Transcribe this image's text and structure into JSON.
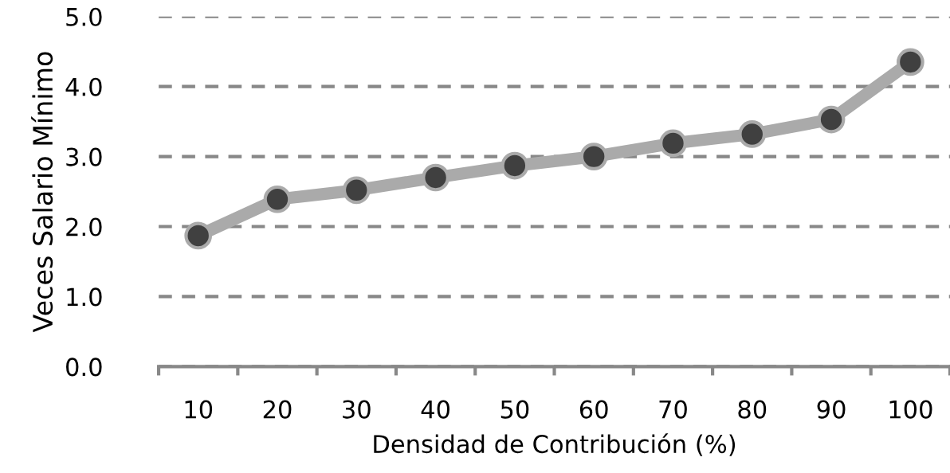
{
  "chart_data": {
    "type": "line",
    "xlabel": "Densidad de Contribución (%)",
    "ylabel": "Veces Salario Mínimo",
    "categories": [
      "10",
      "20",
      "30",
      "40",
      "50",
      "60",
      "70",
      "80",
      "90",
      "100"
    ],
    "series": [
      {
        "color": "#aaaaaa",
        "values": [
          1.87,
          2.39,
          2.52,
          2.7,
          2.87,
          3.0,
          3.19,
          3.32,
          3.53,
          4.35
        ]
      }
    ],
    "ylim": [
      0,
      5
    ],
    "yticks": [
      {
        "value": 0,
        "label": "0.0"
      },
      {
        "value": 1,
        "label": "1.0"
      },
      {
        "value": 2,
        "label": "2.0"
      },
      {
        "value": 3,
        "label": "3.0"
      },
      {
        "value": 4,
        "label": "4.0"
      },
      {
        "value": 5,
        "label": "5.0"
      }
    ],
    "grid": "y",
    "marker": "circle",
    "line_style": "solid",
    "legend": false
  }
}
